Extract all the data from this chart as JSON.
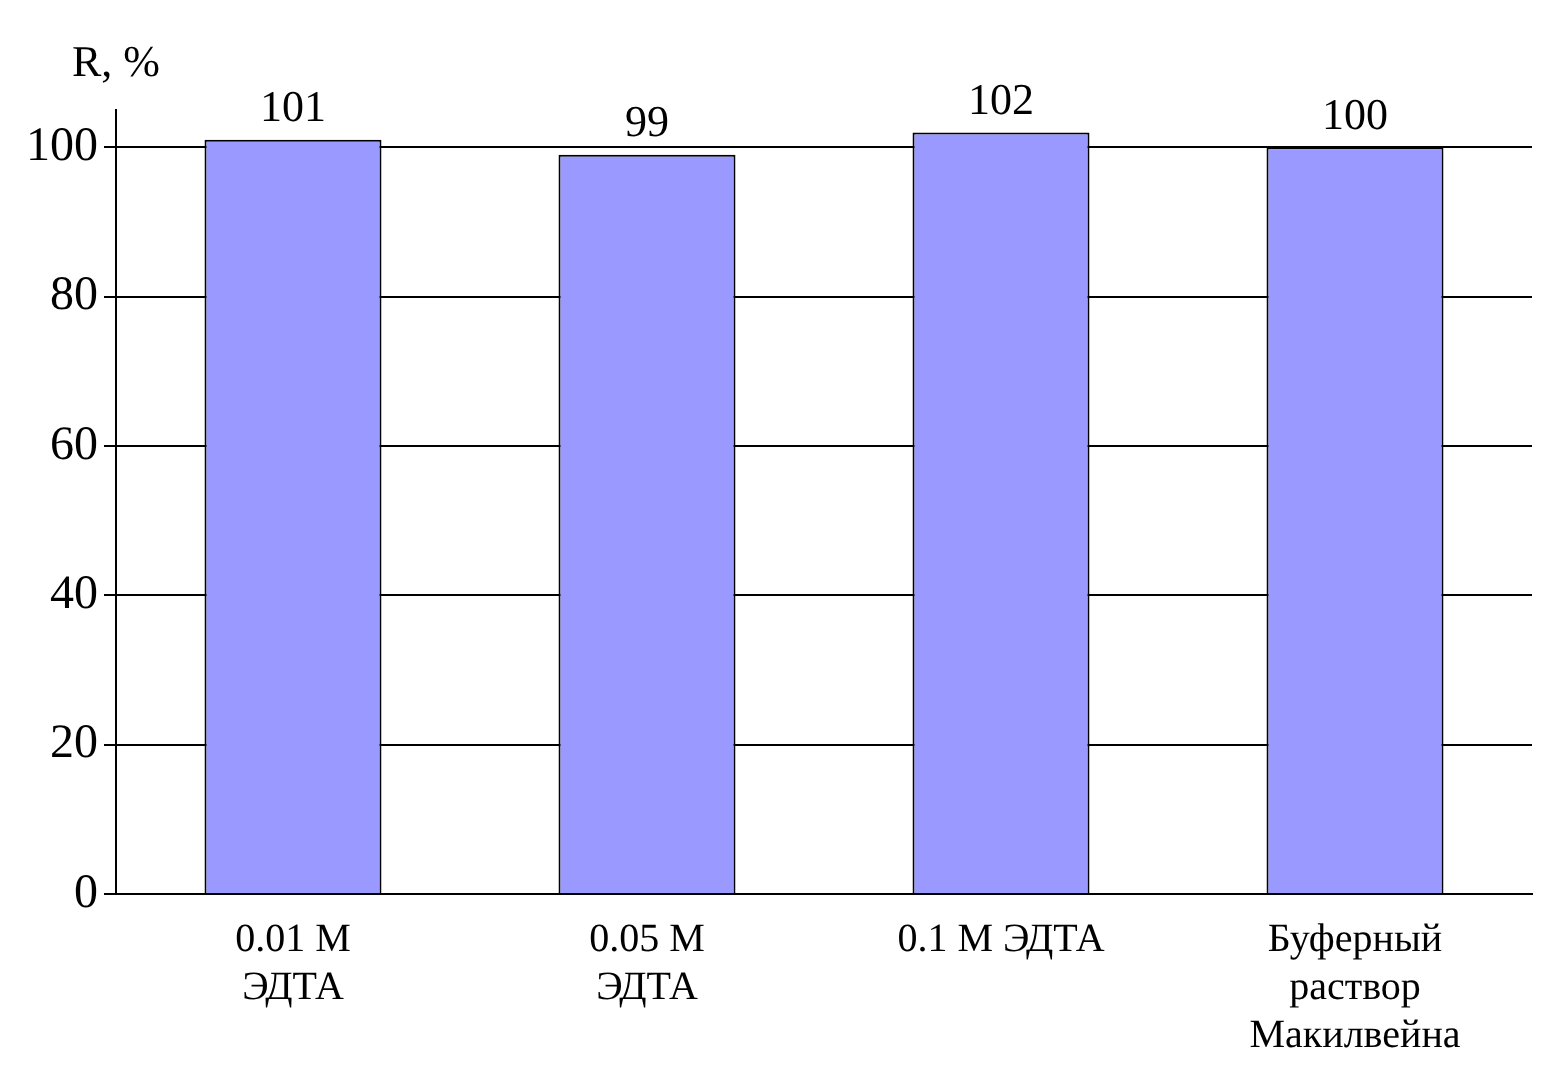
{
  "chart_data": {
    "type": "bar",
    "ylabel": "R, %",
    "categories": [
      "0.01 M\nЭДТА",
      "0.05 M\nЭДТА",
      "0.1 M ЭДТА",
      "Буферный\nраствор\nМакилвейна"
    ],
    "values": [
      101,
      99,
      102,
      100
    ],
    "color": "#9999ff",
    "ylim": [
      0,
      105
    ],
    "yticks": [
      0,
      20,
      40,
      60,
      80,
      100
    ],
    "grid": "y",
    "data_labels": true,
    "legend": false
  }
}
